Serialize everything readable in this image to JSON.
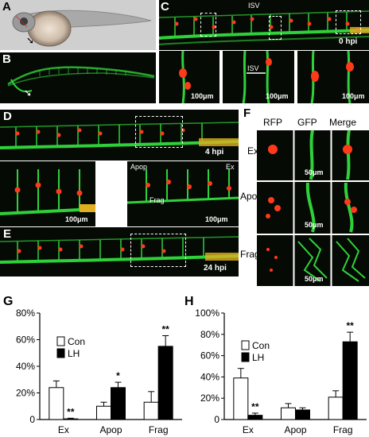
{
  "panels": {
    "A": "A",
    "B": "B",
    "C": "C",
    "D": "D",
    "E": "E",
    "F": "F",
    "G": "G",
    "H": "H"
  },
  "panel_c": {
    "isv_label": "ISV",
    "isv_inset_label": "ISV",
    "time": "0 hpi",
    "scale1": "100μm",
    "scale2": "100μm",
    "scale3": "100μm"
  },
  "panel_d": {
    "time": "4 hpi",
    "scale1": "100μm",
    "scale2": "100μm",
    "apop": "Apop",
    "ex": "Ex",
    "frag": "Frag"
  },
  "panel_e": {
    "time": "24 hpi"
  },
  "panel_f": {
    "headers": [
      "RFP",
      "GFP",
      "Merge"
    ],
    "rows": [
      "Ex",
      "Apop",
      "Frag"
    ],
    "scale": "50μm"
  },
  "colors": {
    "gfp": "#2fd13a",
    "rfp": "#ff3a1a",
    "con": "#ffffff",
    "lh": "#000000"
  },
  "chart_data": [
    {
      "panel": "G",
      "type": "bar",
      "categories": [
        "Ex",
        "Apop",
        "Frag"
      ],
      "series": [
        {
          "name": "Con",
          "values": [
            24,
            10,
            13
          ],
          "errors": [
            5,
            3,
            8
          ]
        },
        {
          "name": "LH",
          "values": [
            0.5,
            24,
            55
          ],
          "errors": [
            0.5,
            4,
            8
          ]
        }
      ],
      "significance": {
        "LH": [
          "**",
          "*",
          "**"
        ]
      },
      "ylim": [
        0,
        80
      ],
      "yticks": [
        "0",
        "20%",
        "40%",
        "60%",
        "80%"
      ],
      "ytick_values": [
        0,
        20,
        40,
        60,
        80
      ],
      "legend": "upper-left"
    },
    {
      "panel": "H",
      "type": "bar",
      "categories": [
        "Ex",
        "Apop",
        "Frag"
      ],
      "series": [
        {
          "name": "Con",
          "values": [
            39,
            11,
            21
          ],
          "errors": [
            9,
            4,
            6
          ]
        },
        {
          "name": "LH",
          "values": [
            4,
            9,
            73
          ],
          "errors": [
            2,
            2,
            9
          ]
        }
      ],
      "significance": {
        "LH": [
          "**",
          "",
          "**"
        ]
      },
      "ylim": [
        0,
        100
      ],
      "yticks": [
        "0",
        "20%",
        "40%",
        "60%",
        "80%",
        "100%"
      ],
      "ytick_values": [
        0,
        20,
        40,
        60,
        80,
        100
      ],
      "legend": "upper-left"
    }
  ]
}
